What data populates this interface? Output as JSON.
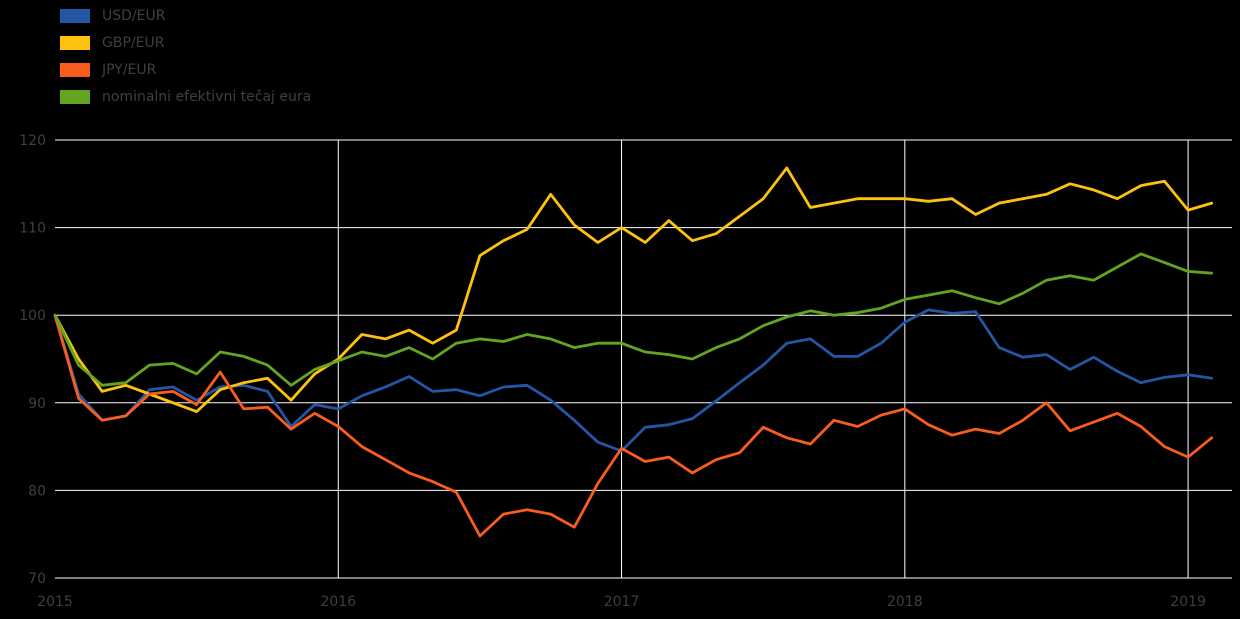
{
  "chart_data": {
    "type": "line",
    "title": "",
    "xlabel": "",
    "ylabel": "",
    "x_ticks": [
      2015,
      2016,
      2017,
      2018,
      2019
    ],
    "y_ticks": [
      70,
      80,
      90,
      100,
      110,
      120
    ],
    "xlim": [
      2015.0,
      2019.155
    ],
    "ylim": [
      70,
      120
    ],
    "x_start": 2015.0,
    "x_step": 0.0833333,
    "grid": true,
    "legend_position": "top-left",
    "background_color": "#000000",
    "grid_color": "#ffffff",
    "text_color": "#3f3f3f",
    "series": [
      {
        "name": "USD/EUR",
        "color": "#2456a5",
        "values": [
          100.0,
          91.0,
          88.0,
          88.5,
          91.5,
          91.8,
          90.3,
          91.8,
          92.0,
          91.3,
          87.3,
          89.8,
          89.3,
          90.8,
          91.8,
          93.0,
          91.3,
          91.5,
          90.8,
          91.8,
          92.0,
          90.3,
          88.0,
          85.5,
          84.5,
          87.2,
          87.5,
          88.2,
          90.2,
          92.3,
          94.3,
          96.8,
          97.3,
          95.3,
          95.3,
          96.8,
          99.2,
          100.6,
          100.2,
          100.4,
          96.3,
          95.2,
          95.5,
          93.8,
          95.2,
          93.6,
          92.3,
          92.9,
          93.2,
          92.8
        ]
      },
      {
        "name": "GBP/EUR",
        "color": "#fdc20f",
        "values": [
          100.0,
          95.0,
          91.3,
          92.0,
          91.0,
          90.0,
          89.0,
          91.5,
          92.3,
          92.8,
          90.3,
          93.3,
          95.0,
          97.8,
          97.3,
          98.3,
          96.8,
          98.3,
          106.8,
          108.5,
          109.8,
          113.8,
          110.3,
          108.3,
          110.0,
          108.3,
          110.8,
          108.5,
          109.3,
          111.3,
          113.3,
          116.8,
          112.3,
          112.8,
          113.3,
          113.3,
          113.3,
          113.0,
          113.3,
          111.5,
          112.8,
          113.3,
          113.8,
          115.0,
          114.3,
          113.3,
          114.8,
          115.3,
          112.0,
          112.8
        ]
      },
      {
        "name": "JPY/EUR",
        "color": "#f95d1e",
        "values": [
          100.0,
          90.5,
          88.0,
          88.5,
          91.0,
          91.3,
          89.8,
          93.5,
          89.3,
          89.5,
          87.0,
          88.8,
          87.3,
          85.0,
          83.5,
          82.0,
          81.0,
          79.8,
          74.8,
          77.3,
          77.8,
          77.3,
          75.8,
          80.8,
          84.8,
          83.3,
          83.8,
          82.0,
          83.5,
          84.3,
          87.2,
          86.0,
          85.3,
          88.0,
          87.3,
          88.6,
          89.3,
          87.5,
          86.3,
          87.0,
          86.5,
          88.0,
          90.0,
          86.8,
          87.8,
          88.8,
          87.3,
          85.0,
          83.8,
          86.0
        ]
      },
      {
        "name": "nominalni efektivni tečaj eura",
        "color": "#63a420",
        "values": [
          100.0,
          94.3,
          92.0,
          92.3,
          94.3,
          94.5,
          93.3,
          95.8,
          95.3,
          94.3,
          92.0,
          93.8,
          94.8,
          95.8,
          95.3,
          96.3,
          95.0,
          96.8,
          97.3,
          97.0,
          97.8,
          97.3,
          96.3,
          96.8,
          96.8,
          95.8,
          95.5,
          95.0,
          96.3,
          97.3,
          98.8,
          99.8,
          100.5,
          100.0,
          100.3,
          100.8,
          101.8,
          102.3,
          102.8,
          102.0,
          101.3,
          102.5,
          104.0,
          104.5,
          104.0,
          105.5,
          107.0,
          106.0,
          105.0,
          104.8
        ]
      }
    ]
  }
}
